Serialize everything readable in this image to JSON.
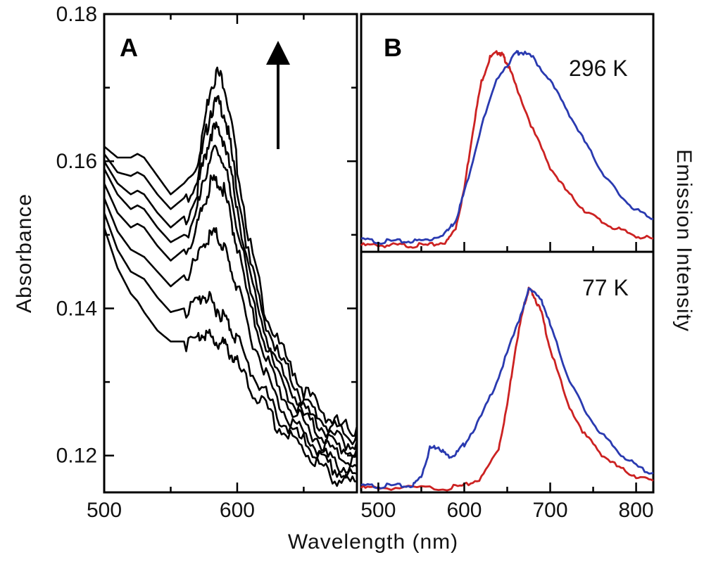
{
  "chart_data": [
    {
      "panel": "A",
      "type": "line",
      "xlabel": "Wavelength (nm)",
      "ylabel": "Absorbance",
      "xlim": [
        500,
        690
      ],
      "ylim": [
        0.115,
        0.18
      ],
      "x_ticks": [
        500,
        600
      ],
      "x_tick_labels": [
        "500",
        "600"
      ],
      "y_ticks": [
        0.12,
        0.14,
        0.16,
        0.18
      ],
      "y_tick_labels": [
        "0.12",
        "0.14",
        "0.16",
        "0.18"
      ],
      "arrow": "up",
      "arrow_meaning": "increasing absorbance",
      "series_color": "#000000",
      "x": [
        500,
        510,
        520,
        525,
        530,
        540,
        550,
        560,
        570,
        575,
        580,
        585,
        590,
        595,
        600,
        610,
        620,
        630,
        640,
        650,
        660,
        670,
        680,
        690
      ],
      "series": [
        {
          "name": "trace-1",
          "values": [
            0.162,
            0.1605,
            0.1605,
            0.161,
            0.1605,
            0.158,
            0.1555,
            0.157,
            0.1605,
            0.1655,
            0.171,
            0.1725,
            0.1715,
            0.1665,
            0.16,
            0.149,
            0.141,
            0.136,
            0.133,
            0.1295,
            0.1275,
            0.1255,
            0.1245,
            0.124
          ]
        },
        {
          "name": "trace-2",
          "values": [
            0.161,
            0.1585,
            0.158,
            0.1585,
            0.158,
            0.1555,
            0.1535,
            0.155,
            0.1585,
            0.163,
            0.1675,
            0.1685,
            0.1675,
            0.1625,
            0.157,
            0.1465,
            0.1395,
            0.1345,
            0.1315,
            0.128,
            0.126,
            0.1245,
            0.1235,
            0.123
          ]
        },
        {
          "name": "trace-3",
          "values": [
            0.16,
            0.157,
            0.1555,
            0.156,
            0.1555,
            0.153,
            0.151,
            0.1525,
            0.1565,
            0.1605,
            0.1645,
            0.165,
            0.1635,
            0.159,
            0.1545,
            0.1445,
            0.138,
            0.133,
            0.13,
            0.127,
            0.125,
            0.1235,
            0.1225,
            0.122
          ]
        },
        {
          "name": "trace-4",
          "values": [
            0.159,
            0.1555,
            0.1535,
            0.154,
            0.1535,
            0.151,
            0.149,
            0.15,
            0.154,
            0.158,
            0.1615,
            0.162,
            0.1605,
            0.156,
            0.152,
            0.1425,
            0.1365,
            0.1315,
            0.1285,
            0.126,
            0.124,
            0.1225,
            0.1215,
            0.121
          ]
        },
        {
          "name": "trace-5",
          "values": [
            0.157,
            0.153,
            0.151,
            0.1515,
            0.151,
            0.1485,
            0.1465,
            0.148,
            0.1515,
            0.155,
            0.1575,
            0.158,
            0.1565,
            0.153,
            0.149,
            0.1405,
            0.135,
            0.13,
            0.127,
            0.125,
            0.123,
            0.1215,
            0.1205,
            0.12
          ]
        },
        {
          "name": "trace-6",
          "values": [
            0.155,
            0.1505,
            0.148,
            0.1475,
            0.147,
            0.145,
            0.143,
            0.1445,
            0.147,
            0.1495,
            0.1505,
            0.1505,
            0.149,
            0.146,
            0.1435,
            0.137,
            0.1325,
            0.128,
            0.1255,
            0.1235,
            0.1215,
            0.12,
            0.119,
            0.1185
          ]
        },
        {
          "name": "trace-7",
          "values": [
            0.153,
            0.148,
            0.145,
            0.1445,
            0.144,
            0.1415,
            0.1395,
            0.14,
            0.1415,
            0.1425,
            0.1415,
            0.1405,
            0.1395,
            0.138,
            0.1365,
            0.132,
            0.1295,
            0.126,
            0.124,
            0.1225,
            0.1205,
            0.119,
            0.118,
            0.1175
          ]
        },
        {
          "name": "trace-8",
          "values": [
            0.151,
            0.1455,
            0.142,
            0.141,
            0.1395,
            0.137,
            0.1355,
            0.1355,
            0.1365,
            0.1375,
            0.1365,
            0.136,
            0.1355,
            0.1345,
            0.133,
            0.1295,
            0.1275,
            0.1245,
            0.123,
            0.1215,
            0.1195,
            0.118,
            0.117,
            0.1165
          ]
        }
      ]
    },
    {
      "panel": "B",
      "subpanel": "top",
      "type": "line",
      "annotation": "296 K",
      "xlim": [
        480,
        820
      ],
      "series": [
        {
          "name": "red",
          "color": "#cc2222",
          "x": [
            480,
            500,
            520,
            540,
            560,
            580,
            590,
            600,
            610,
            620,
            630,
            640,
            645,
            650,
            660,
            680,
            700,
            720,
            740,
            760,
            780,
            800,
            820
          ],
          "values": [
            0.01,
            0.01,
            0.01,
            0.01,
            0.01,
            0.03,
            0.1,
            0.3,
            0.6,
            0.85,
            0.97,
            1.0,
            0.98,
            0.94,
            0.83,
            0.6,
            0.41,
            0.28,
            0.19,
            0.13,
            0.09,
            0.06,
            0.04
          ]
        },
        {
          "name": "blue",
          "color": "#2a3ab0",
          "x": [
            480,
            500,
            520,
            540,
            560,
            580,
            590,
            600,
            620,
            640,
            660,
            665,
            680,
            700,
            720,
            740,
            760,
            780,
            800,
            820
          ],
          "values": [
            0.04,
            0.03,
            0.03,
            0.03,
            0.04,
            0.08,
            0.14,
            0.28,
            0.62,
            0.88,
            0.99,
            1.0,
            0.97,
            0.85,
            0.7,
            0.54,
            0.39,
            0.27,
            0.19,
            0.14
          ]
        }
      ]
    },
    {
      "panel": "B",
      "subpanel": "bottom",
      "type": "line",
      "annotation": "77 K",
      "xlabel": "Wavelength (nm)",
      "ylabel": "Emission Intensity",
      "xlim": [
        480,
        820
      ],
      "x_ticks": [
        500,
        600,
        700,
        800
      ],
      "x_tick_labels": [
        "500",
        "600",
        "700",
        "800"
      ],
      "series": [
        {
          "name": "red",
          "color": "#cc2222",
          "x": [
            480,
            500,
            540,
            580,
            600,
            620,
            640,
            650,
            660,
            670,
            675,
            680,
            690,
            700,
            720,
            740,
            760,
            780,
            800,
            820
          ],
          "values": [
            0.0,
            0.0,
            0.0,
            0.0,
            0.01,
            0.05,
            0.2,
            0.42,
            0.72,
            0.93,
            1.0,
            0.98,
            0.88,
            0.7,
            0.43,
            0.27,
            0.17,
            0.1,
            0.06,
            0.03
          ]
        },
        {
          "name": "blue",
          "color": "#2a3ab0",
          "x": [
            480,
            500,
            520,
            540,
            550,
            560,
            570,
            580,
            590,
            600,
            620,
            640,
            660,
            675,
            690,
            700,
            720,
            740,
            760,
            780,
            800,
            820
          ],
          "values": [
            0.01,
            0.01,
            0.01,
            0.01,
            0.06,
            0.2,
            0.21,
            0.16,
            0.17,
            0.22,
            0.36,
            0.56,
            0.8,
            1.0,
            0.95,
            0.82,
            0.57,
            0.39,
            0.27,
            0.18,
            0.11,
            0.07
          ]
        }
      ]
    }
  ],
  "figure": {
    "panel_a_letter": "A",
    "panel_b_letter": "B",
    "x_axis_title": "Wavelength (nm)",
    "y_axis_title_left": "Absorbance",
    "y_axis_title_right": "Emission Intensity",
    "label_296": "296 K",
    "label_77": "77 K"
  }
}
